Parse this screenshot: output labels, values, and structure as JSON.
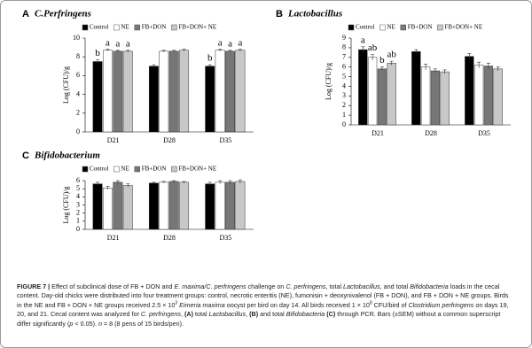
{
  "chart_data": [
    {
      "type": "bar",
      "panel": "A",
      "title": "C.Perfringens",
      "y_label": "Log (CFU)/g",
      "categories": [
        "D21",
        "D28",
        "D35"
      ],
      "ylim": [
        0,
        10
      ],
      "yticks": [
        0,
        2,
        4,
        6,
        8,
        10
      ],
      "series": [
        {
          "name": "Control",
          "color": "#000000",
          "values": [
            7.5,
            7.0,
            7.0
          ],
          "errors": [
            0.2,
            0.15,
            0.15
          ],
          "letters": [
            "b",
            null,
            "b"
          ]
        },
        {
          "name": "NE",
          "color": "#ffffff",
          "values": [
            8.7,
            8.6,
            8.7
          ],
          "errors": [
            0.1,
            0.1,
            0.1
          ],
          "letters": [
            "a",
            null,
            "a"
          ]
        },
        {
          "name": "FB+DON",
          "color": "#777777",
          "values": [
            8.6,
            8.6,
            8.6
          ],
          "errors": [
            0.1,
            0.1,
            0.1
          ],
          "letters": [
            "a",
            null,
            "a"
          ]
        },
        {
          "name": "FB+DON+ NE",
          "color": "#c8c8c8",
          "values": [
            8.6,
            8.7,
            8.7
          ],
          "errors": [
            0.1,
            0.1,
            0.1
          ],
          "letters": [
            "a",
            null,
            "a"
          ]
        }
      ]
    },
    {
      "type": "bar",
      "panel": "B",
      "title": "Lactobacillus",
      "y_label": "Log (CFU)/g",
      "categories": [
        "D21",
        "D28",
        "D35"
      ],
      "ylim": [
        0,
        9
      ],
      "yticks": [
        0,
        1,
        2,
        3,
        4,
        5,
        6,
        7,
        8,
        9
      ],
      "series": [
        {
          "name": "Control",
          "color": "#000000",
          "values": [
            7.8,
            7.6,
            7.1
          ],
          "errors": [
            0.3,
            0.2,
            0.3
          ],
          "letters": [
            "a",
            null,
            null
          ]
        },
        {
          "name": "NE",
          "color": "#ffffff",
          "values": [
            7.0,
            6.0,
            6.2
          ],
          "errors": [
            0.3,
            0.3,
            0.3
          ],
          "letters": [
            "ab",
            null,
            null
          ]
        },
        {
          "name": "FB+DON",
          "color": "#777777",
          "values": [
            5.8,
            5.6,
            6.1
          ],
          "errors": [
            0.2,
            0.2,
            0.3
          ],
          "letters": [
            "b",
            null,
            null
          ]
        },
        {
          "name": "FB+DON+ NE",
          "color": "#c8c8c8",
          "values": [
            6.4,
            5.5,
            5.8
          ],
          "errors": [
            0.2,
            0.2,
            0.2
          ],
          "letters": [
            "ab",
            null,
            null
          ]
        }
      ]
    },
    {
      "type": "bar",
      "panel": "C",
      "title": "Bifidobacterium",
      "y_label": "Log (CFU)/g",
      "categories": [
        "D21",
        "D28",
        "D35"
      ],
      "ylim": [
        0,
        6
      ],
      "yticks": [
        0,
        1,
        2,
        3,
        4,
        5,
        6
      ],
      "series": [
        {
          "name": "Control",
          "color": "#000000",
          "values": [
            5.6,
            5.7,
            5.6
          ],
          "errors": [
            0.2,
            0.1,
            0.2
          ]
        },
        {
          "name": "NE",
          "color": "#ffffff",
          "values": [
            5.1,
            5.8,
            5.8
          ],
          "errors": [
            0.2,
            0.1,
            0.2
          ]
        },
        {
          "name": "FB+DON",
          "color": "#777777",
          "values": [
            5.8,
            5.9,
            5.8
          ],
          "errors": [
            0.2,
            0.1,
            0.2
          ]
        },
        {
          "name": "FB+DON+ NE",
          "color": "#c8c8c8",
          "values": [
            5.4,
            5.8,
            5.9
          ],
          "errors": [
            0.2,
            0.1,
            0.2
          ]
        }
      ]
    }
  ],
  "caption": {
    "runs": [
      {
        "text": "FIGURE 7 | ",
        "style": "b"
      },
      {
        "text": "Effect of subclinical dose of FB + DON and "
      },
      {
        "text": "E. maxima/C. perfringens",
        "style": "i"
      },
      {
        "text": " challenge on "
      },
      {
        "text": "C. perfringens",
        "style": "i"
      },
      {
        "text": ", total "
      },
      {
        "text": "Lactobacillus",
        "style": "i"
      },
      {
        "text": ", and total "
      },
      {
        "text": "Bifidobacteria",
        "style": "i"
      },
      {
        "text": " loads in the cecal content. Day-old chicks were distributed into four treatment groups: control, necrotic enteritis (NE), fumonisin + deoxynivalenol (FB + DON), and FB + DON + NE groups. Birds in the NE and FB + DON + NE groups received 2.5 × 10"
      },
      {
        "text": "3",
        "style": "sup"
      },
      {
        "text": " "
      },
      {
        "text": "Eimeria maxima",
        "style": "i"
      },
      {
        "text": " oocyst per bird on day 14. All birds received 1 × 10"
      },
      {
        "text": "8",
        "style": "sup"
      },
      {
        "text": " CFU/bird of "
      },
      {
        "text": "Clostridium perfringens",
        "style": "i"
      },
      {
        "text": " on days 19, 20, and 21. Cecal content was analyzed for "
      },
      {
        "text": "C. perfringens",
        "style": "i"
      },
      {
        "text": ", "
      },
      {
        "text": "(A)",
        "style": "b"
      },
      {
        "text": " total "
      },
      {
        "text": "Lactobacillus",
        "style": "i"
      },
      {
        "text": ", "
      },
      {
        "text": "(B)",
        "style": "b"
      },
      {
        "text": " and total "
      },
      {
        "text": "Bifidobacteria",
        "style": "i"
      },
      {
        "text": " "
      },
      {
        "text": "(C)",
        "style": "b"
      },
      {
        "text": " through PCR. Bars (±SEM) without a common superscript differ significantly ("
      },
      {
        "text": "p",
        "style": "i"
      },
      {
        "text": " < 0.05). "
      },
      {
        "text": "n",
        "style": "i"
      },
      {
        "text": " = 8 (8 pens of 15 birds/pen)."
      }
    ]
  }
}
